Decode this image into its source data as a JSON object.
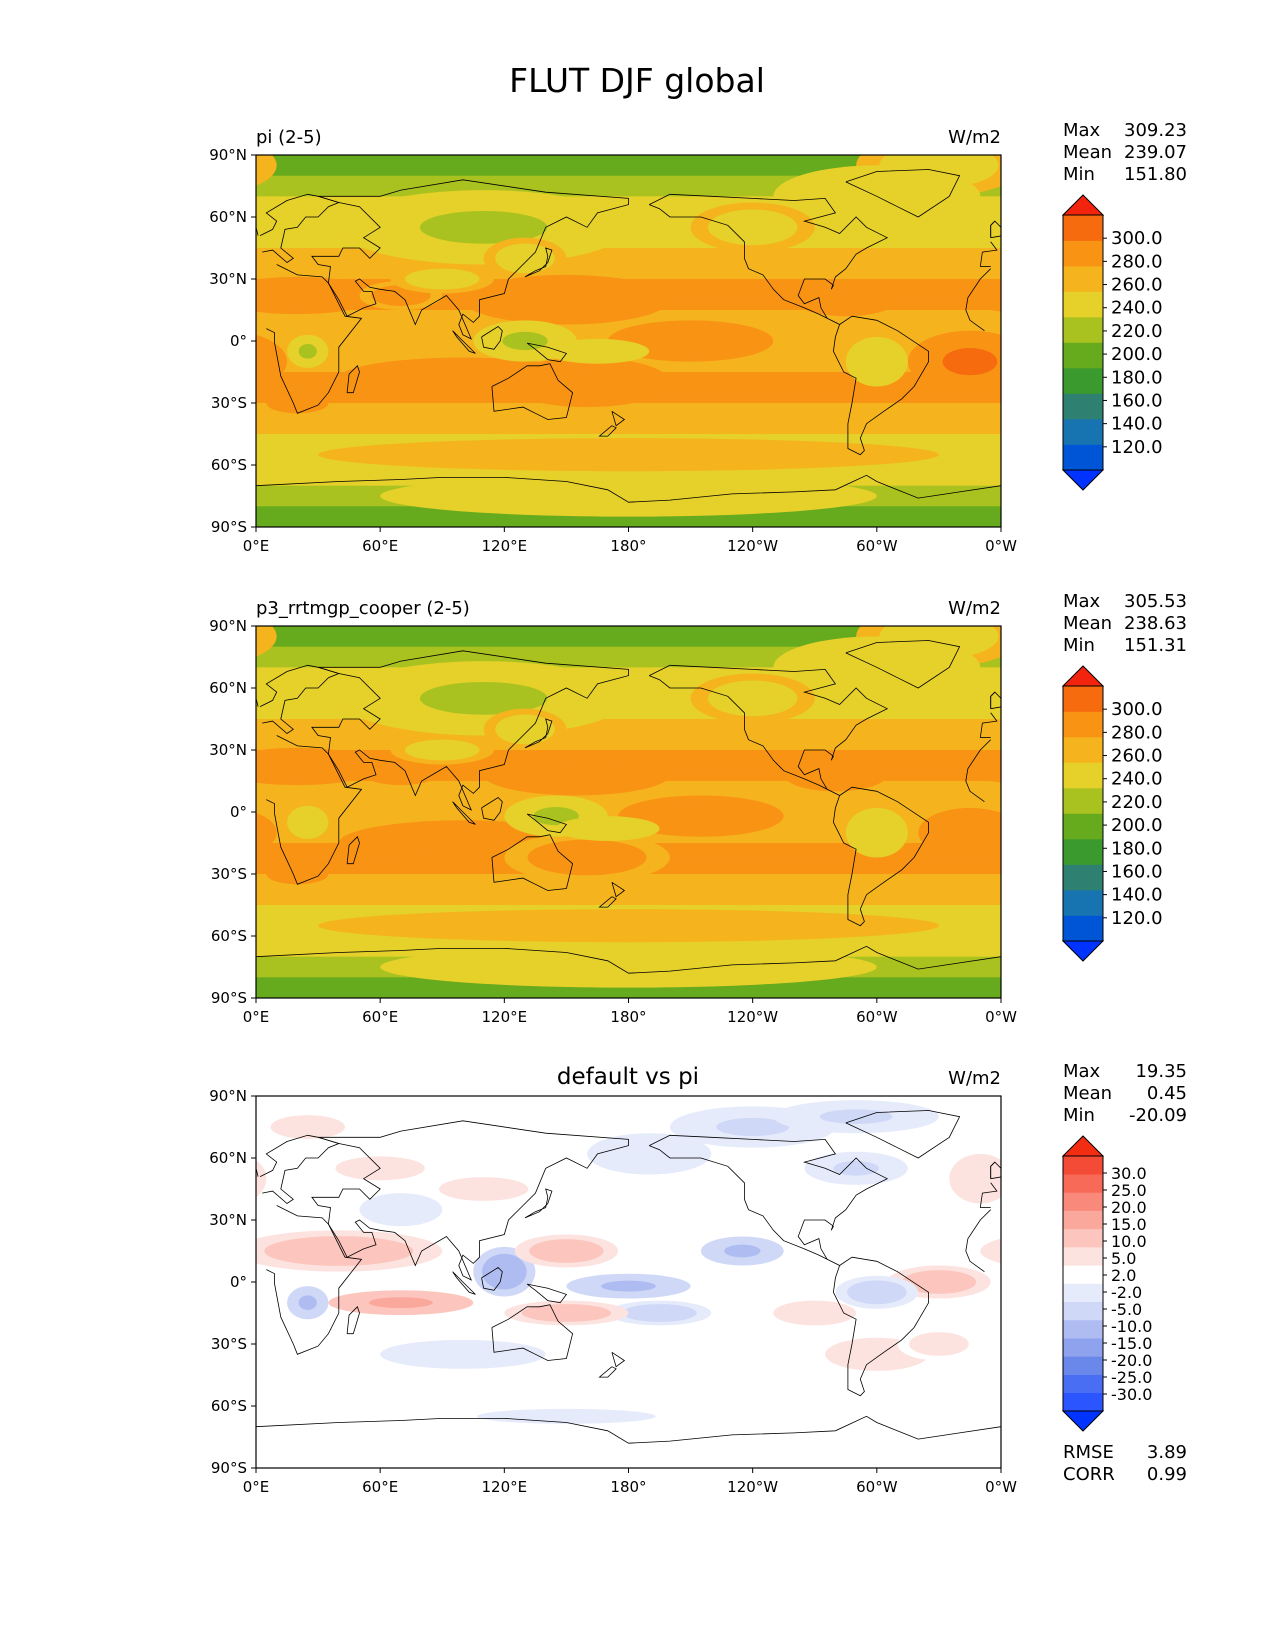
{
  "figure": {
    "title": "FLUT DJF global"
  },
  "axes": {
    "lat_ticks": [
      "90°N",
      "60°N",
      "30°N",
      "0°",
      "30°S",
      "60°S",
      "90°S"
    ],
    "lon_ticks": [
      "0°E",
      "60°E",
      "120°E",
      "180°",
      "120°W",
      "60°W",
      "0°W"
    ]
  },
  "colors": {
    "abs_levels": [
      "#0033ff",
      "#0055d6",
      "#1874b0",
      "#2e8170",
      "#3a9a2e",
      "#66aa1e",
      "#a9c220",
      "#e6d02a",
      "#f5b41e",
      "#f99314",
      "#f66b0e",
      "#f3240e"
    ],
    "diff_levels": [
      "#0033ff",
      "#2a55ff",
      "#4a6ef3",
      "#6a87ea",
      "#8ea2ee",
      "#afbcf2",
      "#cfd8f7",
      "#e5ebfb",
      "#ffffff",
      "#fde3df",
      "#fcc6be",
      "#fba89c",
      "#f9897a",
      "#f76a58",
      "#f44b36",
      "#f22d12"
    ],
    "coast": "#000000"
  },
  "chart_data": [
    {
      "type": "heatmap",
      "title": "pi (2-5)",
      "units": "W/m2",
      "stats": {
        "max_label": "Max",
        "max": "309.23",
        "mean_label": "Mean",
        "mean": "239.07",
        "min_label": "Min",
        "min": "151.80"
      },
      "colorbar_labels": [
        "300.0",
        "280.0",
        "260.0",
        "240.0",
        "220.0",
        "200.0",
        "180.0",
        "160.0",
        "140.0",
        "120.0"
      ],
      "colorbar_levels": [
        120,
        140,
        160,
        180,
        200,
        220,
        240,
        260,
        280,
        300
      ],
      "xlim": [
        0,
        360
      ],
      "ylim": [
        -90,
        90
      ],
      "blobs": [
        {
          "lon": 330,
          "lat": 85,
          "rx": 40,
          "ry": 15,
          "v": -20
        },
        {
          "lon": 310,
          "lat": 70,
          "rx": 30,
          "ry": 10,
          "v": -35
        },
        {
          "lon": 110,
          "lat": 55,
          "rx": 70,
          "ry": 18,
          "v": -38
        },
        {
          "lon": 300,
          "lat": 70,
          "rx": 50,
          "ry": 15,
          "v": -25
        },
        {
          "lon": 240,
          "lat": 55,
          "rx": 30,
          "ry": 12,
          "v": -20
        },
        {
          "lon": 130,
          "lat": 40,
          "rx": 20,
          "ry": 10,
          "v": -15
        },
        {
          "lon": 150,
          "lat": 20,
          "rx": 50,
          "ry": 12,
          "v": 25
        },
        {
          "lon": 210,
          "lat": 0,
          "rx": 40,
          "ry": 10,
          "v": 22
        },
        {
          "lon": 345,
          "lat": -10,
          "rx": 30,
          "ry": 15,
          "v": 30
        },
        {
          "lon": 285,
          "lat": 20,
          "rx": 25,
          "ry": 8,
          "v": 22
        },
        {
          "lon": 20,
          "lat": 22,
          "rx": 40,
          "ry": 9,
          "v": 28
        },
        {
          "lon": 70,
          "lat": 22,
          "rx": 20,
          "ry": 7,
          "v": 18
        },
        {
          "lon": 100,
          "lat": -18,
          "rx": 60,
          "ry": 10,
          "v": 25
        },
        {
          "lon": 160,
          "lat": -20,
          "rx": 40,
          "ry": 12,
          "v": 20
        },
        {
          "lon": 20,
          "lat": -30,
          "rx": 15,
          "ry": 5,
          "v": 25
        },
        {
          "lon": 130,
          "lat": 0,
          "rx": 25,
          "ry": 10,
          "v": -40
        },
        {
          "lon": 165,
          "lat": -5,
          "rx": 25,
          "ry": 6,
          "v": -30
        },
        {
          "lon": 25,
          "lat": -5,
          "rx": 10,
          "ry": 8,
          "v": -35
        },
        {
          "lon": 300,
          "lat": -10,
          "rx": 15,
          "ry": 12,
          "v": -25
        },
        {
          "lon": 90,
          "lat": 30,
          "rx": 25,
          "ry": 7,
          "v": -20
        },
        {
          "lon": 180,
          "lat": -75,
          "rx": 120,
          "ry": 10,
          "v": -25
        },
        {
          "lon": 180,
          "lat": -55,
          "rx": 150,
          "ry": 8,
          "v": -8
        }
      ]
    },
    {
      "type": "heatmap",
      "title": "p3_rrtmgp_cooper (2-5)",
      "units": "W/m2",
      "stats": {
        "max_label": "Max",
        "max": "305.53",
        "mean_label": "Mean",
        "mean": "238.63",
        "min_label": "Min",
        "min": "151.31"
      },
      "colorbar_labels": [
        "300.0",
        "280.0",
        "260.0",
        "240.0",
        "220.0",
        "200.0",
        "180.0",
        "160.0",
        "140.0",
        "120.0"
      ],
      "colorbar_levels": [
        120,
        140,
        160,
        180,
        200,
        220,
        240,
        260,
        280,
        300
      ],
      "xlim": [
        0,
        360
      ],
      "ylim": [
        -90,
        90
      ],
      "blobs": [
        {
          "lon": 330,
          "lat": 85,
          "rx": 40,
          "ry": 15,
          "v": -20
        },
        {
          "lon": 310,
          "lat": 70,
          "rx": 30,
          "ry": 10,
          "v": -35
        },
        {
          "lon": 110,
          "lat": 55,
          "rx": 70,
          "ry": 18,
          "v": -38
        },
        {
          "lon": 300,
          "lat": 70,
          "rx": 50,
          "ry": 15,
          "v": -25
        },
        {
          "lon": 240,
          "lat": 55,
          "rx": 30,
          "ry": 12,
          "v": -20
        },
        {
          "lon": 130,
          "lat": 40,
          "rx": 20,
          "ry": 10,
          "v": -15
        },
        {
          "lon": 155,
          "lat": 18,
          "rx": 45,
          "ry": 10,
          "v": 22
        },
        {
          "lon": 215,
          "lat": -2,
          "rx": 40,
          "ry": 10,
          "v": 24
        },
        {
          "lon": 345,
          "lat": -10,
          "rx": 25,
          "ry": 12,
          "v": 24
        },
        {
          "lon": 280,
          "lat": 18,
          "rx": 25,
          "ry": 8,
          "v": 20
        },
        {
          "lon": 20,
          "lat": 22,
          "rx": 40,
          "ry": 9,
          "v": 26
        },
        {
          "lon": 70,
          "lat": 20,
          "rx": 20,
          "ry": 7,
          "v": 20
        },
        {
          "lon": 100,
          "lat": -15,
          "rx": 60,
          "ry": 11,
          "v": 26
        },
        {
          "lon": 160,
          "lat": -22,
          "rx": 40,
          "ry": 12,
          "v": 18
        },
        {
          "lon": 20,
          "lat": -30,
          "rx": 15,
          "ry": 5,
          "v": 25
        },
        {
          "lon": 145,
          "lat": -2,
          "rx": 25,
          "ry": 10,
          "v": -40
        },
        {
          "lon": 170,
          "lat": -8,
          "rx": 25,
          "ry": 6,
          "v": -30
        },
        {
          "lon": 25,
          "lat": -5,
          "rx": 10,
          "ry": 8,
          "v": -30
        },
        {
          "lon": 300,
          "lat": -10,
          "rx": 15,
          "ry": 12,
          "v": -25
        },
        {
          "lon": 90,
          "lat": 30,
          "rx": 25,
          "ry": 7,
          "v": -20
        },
        {
          "lon": 180,
          "lat": -75,
          "rx": 120,
          "ry": 10,
          "v": -25
        },
        {
          "lon": 180,
          "lat": -55,
          "rx": 150,
          "ry": 8,
          "v": -8
        }
      ]
    },
    {
      "type": "heatmap",
      "title": "default vs pi",
      "units": "W/m2",
      "stats": {
        "max_label": "Max",
        "max": "19.35",
        "mean_label": "Mean",
        "mean": "0.45",
        "min_label": "Min",
        "min": "-20.09"
      },
      "colorbar_labels": [
        "30.0",
        "25.0",
        "20.0",
        "15.0",
        "10.0",
        "5.0",
        "2.0",
        "-2.0",
        "-5.0",
        "-10.0",
        "-15.0",
        "-20.0",
        "-25.0",
        "-30.0"
      ],
      "colorbar_levels": [
        -30,
        -25,
        -20,
        -15,
        -10,
        -5,
        -2,
        2,
        5,
        10,
        15,
        20,
        25,
        30
      ],
      "metrics": {
        "rmse_label": "RMSE",
        "rmse": "3.89",
        "corr_label": "CORR",
        "corr": "0.99"
      },
      "xlim": [
        0,
        360
      ],
      "ylim": [
        -90,
        90
      ],
      "blobs": [
        {
          "lon": 25,
          "lat": 75,
          "rx": 25,
          "ry": 8,
          "v": 4
        },
        {
          "lon": 60,
          "lat": 55,
          "rx": 30,
          "ry": 8,
          "v": 4
        },
        {
          "lon": 70,
          "lat": 35,
          "rx": 20,
          "ry": 8,
          "v": -4
        },
        {
          "lon": 110,
          "lat": 45,
          "rx": 30,
          "ry": 8,
          "v": 3
        },
        {
          "lon": 190,
          "lat": 62,
          "rx": 30,
          "ry": 10,
          "v": -4
        },
        {
          "lon": 240,
          "lat": 75,
          "rx": 40,
          "ry": 10,
          "v": -5
        },
        {
          "lon": 290,
          "lat": 80,
          "rx": 40,
          "ry": 8,
          "v": -5
        },
        {
          "lon": 290,
          "lat": 55,
          "rx": 25,
          "ry": 8,
          "v": -5
        },
        {
          "lon": 350,
          "lat": 50,
          "rx": 15,
          "ry": 12,
          "v": 5
        },
        {
          "lon": 40,
          "lat": 15,
          "rx": 50,
          "ry": 10,
          "v": 8
        },
        {
          "lon": 70,
          "lat": -10,
          "rx": 35,
          "ry": 6,
          "v": 12
        },
        {
          "lon": 25,
          "lat": -10,
          "rx": 10,
          "ry": 8,
          "v": -12
        },
        {
          "lon": 120,
          "lat": 5,
          "rx": 15,
          "ry": 12,
          "v": -14
        },
        {
          "lon": 150,
          "lat": 15,
          "rx": 25,
          "ry": 8,
          "v": 8
        },
        {
          "lon": 180,
          "lat": -2,
          "rx": 30,
          "ry": 6,
          "v": -10
        },
        {
          "lon": 195,
          "lat": -15,
          "rx": 25,
          "ry": 6,
          "v": -8
        },
        {
          "lon": 150,
          "lat": -15,
          "rx": 30,
          "ry": 6,
          "v": 10
        },
        {
          "lon": 235,
          "lat": 15,
          "rx": 20,
          "ry": 7,
          "v": -10
        },
        {
          "lon": 330,
          "lat": 0,
          "rx": 25,
          "ry": 8,
          "v": 8
        },
        {
          "lon": 300,
          "lat": -5,
          "rx": 20,
          "ry": 8,
          "v": -8
        },
        {
          "lon": 270,
          "lat": -15,
          "rx": 20,
          "ry": 6,
          "v": 5
        },
        {
          "lon": 300,
          "lat": -35,
          "rx": 25,
          "ry": 8,
          "v": 5
        },
        {
          "lon": 100,
          "lat": -35,
          "rx": 40,
          "ry": 7,
          "v": -4
        },
        {
          "lon": 150,
          "lat": -65,
          "rx": 60,
          "ry": 5,
          "v": -3
        },
        {
          "lon": 330,
          "lat": -30,
          "rx": 20,
          "ry": 8,
          "v": 4
        }
      ]
    }
  ]
}
